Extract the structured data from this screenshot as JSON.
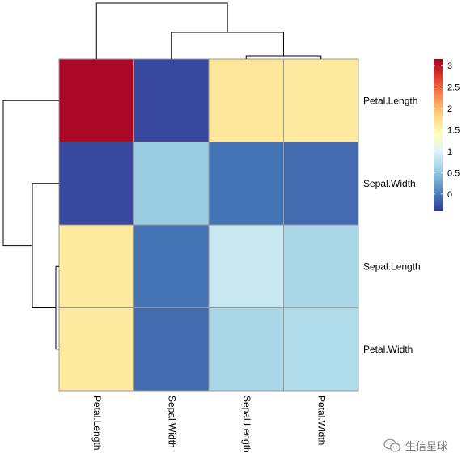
{
  "chart_data": {
    "type": "heatmap",
    "title": "",
    "rows": [
      "Petal.Length",
      "Sepal.Width",
      "Sepal.Length",
      "Petal.Width"
    ],
    "columns": [
      "Petal.Length",
      "Sepal.Width",
      "Sepal.Length",
      "Petal.Width"
    ],
    "values": [
      [
        3.1,
        -0.3,
        1.65,
        1.6
      ],
      [
        -0.3,
        0.55,
        -0.05,
        -0.1
      ],
      [
        1.6,
        -0.05,
        0.85,
        0.65
      ],
      [
        1.6,
        -0.1,
        0.65,
        0.7
      ]
    ],
    "colorbar": {
      "ticks": [
        "0",
        "0.5",
        "1",
        "1.5",
        "2",
        "2.5",
        "3"
      ],
      "range": [
        -0.4,
        3.15
      ],
      "palette": [
        "#313695",
        "#4575B4",
        "#74ADD1",
        "#ABD9E9",
        "#E0F3F8",
        "#FFFFBF",
        "#FEE090",
        "#FDAE61",
        "#F46D43",
        "#D73027",
        "#A50026"
      ]
    },
    "grid_color": "#9a9a9a",
    "row_dendrogram": true,
    "column_dendrogram": true,
    "legend_position": "right"
  },
  "watermark": {
    "icon": "wechat-icon",
    "text": "生信星球"
  }
}
